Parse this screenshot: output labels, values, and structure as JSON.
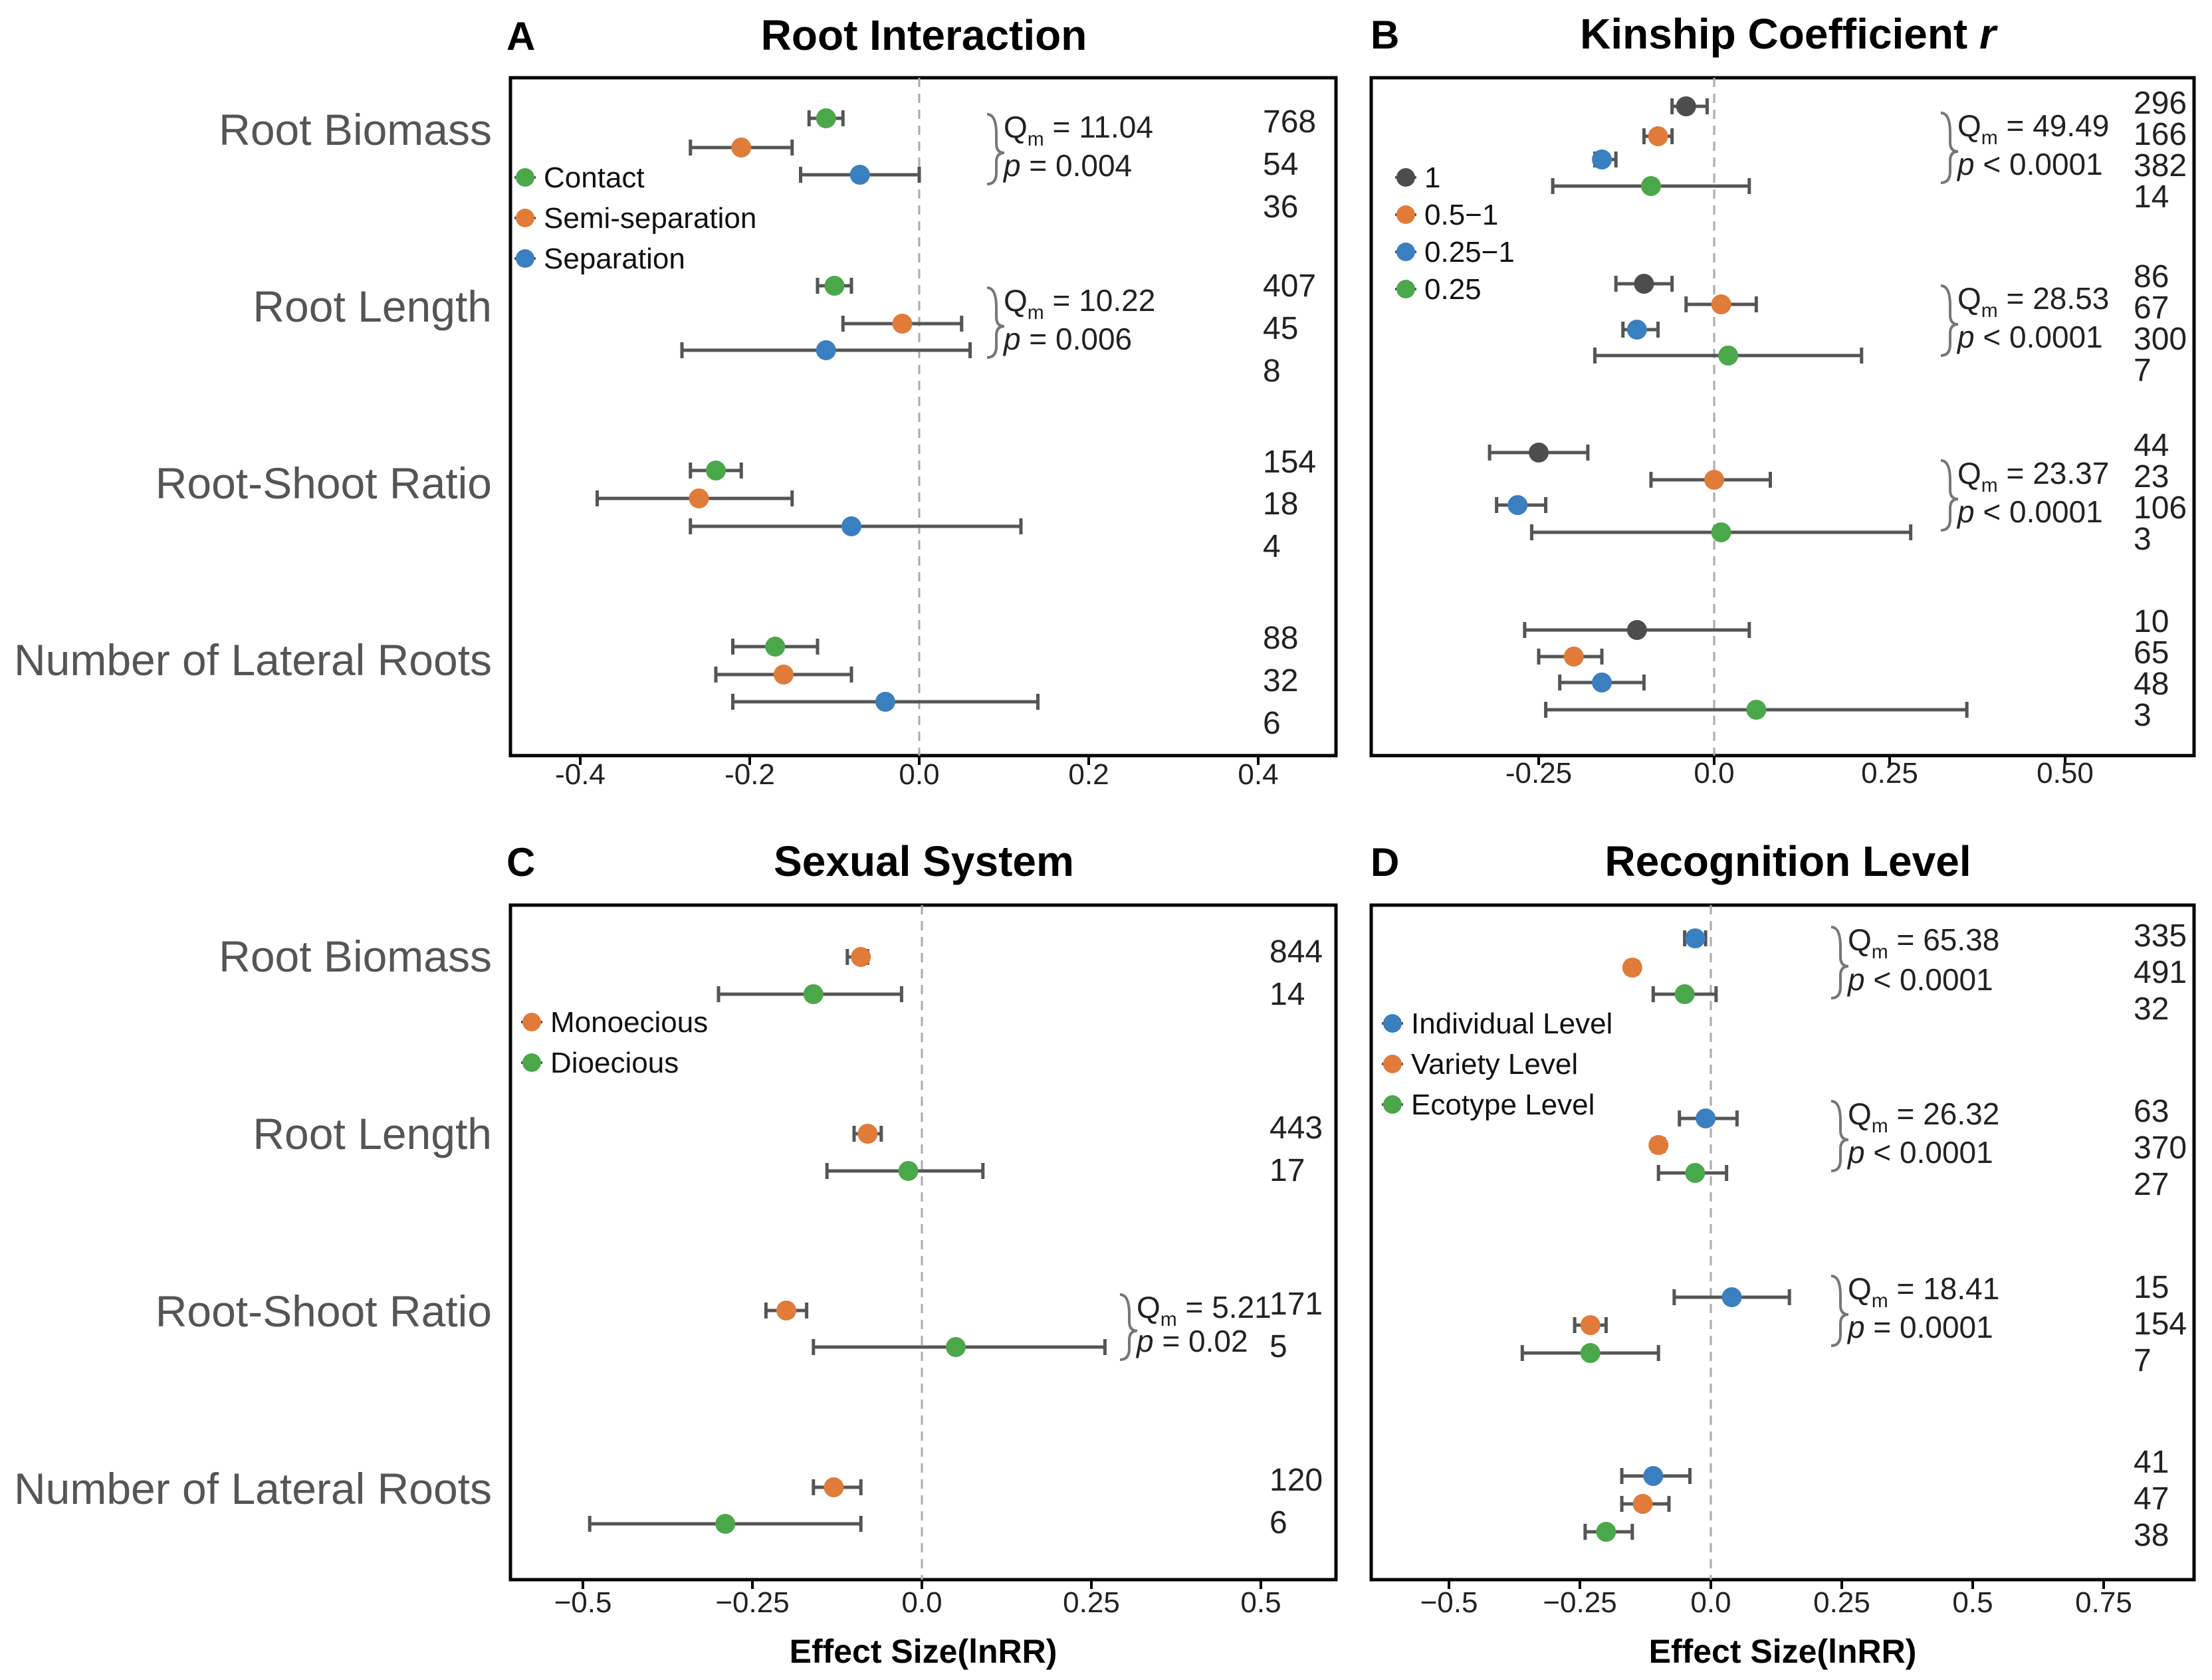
{
  "chart_data": [
    {
      "panel": "A",
      "title": "Root Interaction",
      "type": "scatter",
      "xlim": [
        -0.46,
        0.5
      ],
      "xticks": [
        "-0.4",
        "-0.2",
        "0.0",
        "0.2",
        "0.4"
      ],
      "xtick_values": [
        -0.4,
        -0.2,
        0.0,
        0.2,
        0.4
      ],
      "xlabel": "",
      "legend": [
        {
          "label": "Contact",
          "color": "#4aa84a"
        },
        {
          "label": "Semi-separation",
          "color": "#e07b39"
        },
        {
          "label": "Separation",
          "color": "#3a7fc0"
        }
      ],
      "groups": [
        {
          "category": "Root Biomass",
          "q_value": "= 11.04",
          "p_value": "= 0.004",
          "points": [
            {
              "series": 0,
              "mean": -0.11,
              "lo": -0.13,
              "hi": -0.09,
              "n": "768"
            },
            {
              "series": 1,
              "mean": -0.21,
              "lo": -0.27,
              "hi": -0.15,
              "n": "54"
            },
            {
              "series": 2,
              "mean": -0.07,
              "lo": -0.14,
              "hi": 0.0,
              "n": "36"
            }
          ]
        },
        {
          "category": "Root Length",
          "q_value": "= 10.22",
          "p_value": "= 0.006",
          "points": [
            {
              "series": 0,
              "mean": -0.1,
              "lo": -0.12,
              "hi": -0.08,
              "n": "407"
            },
            {
              "series": 1,
              "mean": -0.02,
              "lo": -0.09,
              "hi": 0.05,
              "n": "45"
            },
            {
              "series": 2,
              "mean": -0.11,
              "lo": -0.28,
              "hi": 0.06,
              "n": "8"
            }
          ]
        },
        {
          "category": "Root-Shoot Ratio",
          "q_value": "",
          "p_value": "",
          "points": [
            {
              "series": 0,
              "mean": -0.24,
              "lo": -0.27,
              "hi": -0.21,
              "n": "154"
            },
            {
              "series": 1,
              "mean": -0.26,
              "lo": -0.38,
              "hi": -0.15,
              "n": "18"
            },
            {
              "series": 2,
              "mean": -0.08,
              "lo": -0.27,
              "hi": 0.12,
              "n": "4"
            }
          ]
        },
        {
          "category": "Number of Lateral Roots",
          "q_value": "",
          "p_value": "",
          "points": [
            {
              "series": 0,
              "mean": -0.17,
              "lo": -0.22,
              "hi": -0.12,
              "n": "88"
            },
            {
              "series": 1,
              "mean": -0.16,
              "lo": -0.24,
              "hi": -0.08,
              "n": "32"
            },
            {
              "series": 2,
              "mean": -0.04,
              "lo": -0.22,
              "hi": 0.14,
              "n": "6"
            }
          ]
        }
      ]
    },
    {
      "panel": "B",
      "title": "Kinship Coefficient ",
      "title_italic": "r",
      "type": "scatter",
      "xlim": [
        -0.47,
        0.65
      ],
      "xticks": [
        "-0.25",
        "0.0",
        "0.25",
        "0.50"
      ],
      "xtick_values": [
        -0.25,
        0.0,
        0.25,
        0.5
      ],
      "xlabel": "",
      "legend": [
        {
          "label": "1",
          "color": "#4d4d4d"
        },
        {
          "label": "0.5−1",
          "color": "#e07b39"
        },
        {
          "label": "0.25−1",
          "color": "#3a7fc0"
        },
        {
          "label": "0.25",
          "color": "#4aa84a"
        }
      ],
      "groups": [
        {
          "category": "",
          "q_value": "= 49.49",
          "p_value": "< 0.0001",
          "points": [
            {
              "series": 0,
              "mean": -0.04,
              "lo": -0.06,
              "hi": -0.01,
              "n": "296"
            },
            {
              "series": 1,
              "mean": -0.08,
              "lo": -0.1,
              "hi": -0.06,
              "n": "166"
            },
            {
              "series": 2,
              "mean": -0.16,
              "lo": -0.17,
              "hi": -0.14,
              "n": "382"
            },
            {
              "series": 3,
              "mean": -0.09,
              "lo": -0.23,
              "hi": 0.05,
              "n": "14"
            }
          ]
        },
        {
          "category": "",
          "q_value": "= 28.53",
          "p_value": "< 0.0001",
          "points": [
            {
              "series": 0,
              "mean": -0.1,
              "lo": -0.14,
              "hi": -0.06,
              "n": "86"
            },
            {
              "series": 1,
              "mean": 0.01,
              "lo": -0.04,
              "hi": 0.06,
              "n": "67"
            },
            {
              "series": 2,
              "mean": -0.11,
              "lo": -0.13,
              "hi": -0.08,
              "n": "300"
            },
            {
              "series": 3,
              "mean": 0.02,
              "lo": -0.17,
              "hi": 0.21,
              "n": "7"
            }
          ]
        },
        {
          "category": "",
          "q_value": "= 23.37",
          "p_value": "< 0.0001",
          "points": [
            {
              "series": 0,
              "mean": -0.25,
              "lo": -0.32,
              "hi": -0.18,
              "n": "44"
            },
            {
              "series": 1,
              "mean": 0.0,
              "lo": -0.09,
              "hi": 0.08,
              "n": "23"
            },
            {
              "series": 2,
              "mean": -0.28,
              "lo": -0.31,
              "hi": -0.24,
              "n": "106"
            },
            {
              "series": 3,
              "mean": 0.01,
              "lo": -0.26,
              "hi": 0.28,
              "n": "3"
            }
          ]
        },
        {
          "category": "",
          "q_value": "",
          "p_value": "",
          "points": [
            {
              "series": 0,
              "mean": -0.11,
              "lo": -0.27,
              "hi": 0.05,
              "n": "10"
            },
            {
              "series": 1,
              "mean": -0.2,
              "lo": -0.25,
              "hi": -0.16,
              "n": "65"
            },
            {
              "series": 2,
              "mean": -0.16,
              "lo": -0.22,
              "hi": -0.1,
              "n": "48"
            },
            {
              "series": 3,
              "mean": 0.06,
              "lo": -0.24,
              "hi": 0.36,
              "n": "3"
            }
          ]
        }
      ]
    },
    {
      "panel": "C",
      "title": "Sexual System",
      "type": "scatter",
      "xlim": [
        -0.58,
        0.58
      ],
      "xticks": [
        "−0.5",
        "−0.25",
        "0.0",
        "0.25",
        "0.5"
      ],
      "xtick_values": [
        -0.5,
        -0.25,
        0.0,
        0.25,
        0.5
      ],
      "xlabel": "Effect Size(lnRR)",
      "legend": [
        {
          "label": "Monoecious",
          "color": "#e07b39"
        },
        {
          "label": "Dioecious",
          "color": "#4aa84a"
        }
      ],
      "groups": [
        {
          "category": "Root Biomass",
          "q_value": "",
          "p_value": "",
          "points": [
            {
              "series": 0,
              "mean": -0.09,
              "lo": -0.11,
              "hi": -0.08,
              "n": "844"
            },
            {
              "series": 1,
              "mean": -0.16,
              "lo": -0.3,
              "hi": -0.03,
              "n": "14"
            }
          ]
        },
        {
          "category": "Root Length",
          "q_value": "",
          "p_value": "",
          "points": [
            {
              "series": 0,
              "mean": -0.08,
              "lo": -0.1,
              "hi": -0.06,
              "n": "443"
            },
            {
              "series": 1,
              "mean": -0.02,
              "lo": -0.14,
              "hi": 0.09,
              "n": "17"
            }
          ]
        },
        {
          "category": "Root-Shoot Ratio",
          "q_value": "= 5.21",
          "p_value": "= 0.02",
          "points": [
            {
              "series": 0,
              "mean": -0.2,
              "lo": -0.23,
              "hi": -0.17,
              "n": "171"
            },
            {
              "series": 1,
              "mean": 0.05,
              "lo": -0.16,
              "hi": 0.27,
              "n": "5"
            }
          ]
        },
        {
          "category": "Number of Lateral Roots",
          "q_value": "",
          "p_value": "",
          "points": [
            {
              "series": 0,
              "mean": -0.13,
              "lo": -0.16,
              "hi": -0.09,
              "n": "120"
            },
            {
              "series": 1,
              "mean": -0.29,
              "lo": -0.49,
              "hi": -0.09,
              "n": "6"
            }
          ]
        }
      ]
    },
    {
      "panel": "D",
      "title": "Recognition Level",
      "type": "scatter",
      "xlim": [
        -0.65,
        0.95
      ],
      "xticks": [
        "−0.5",
        "−0.25",
        "0.0",
        "0.25",
        "0.5",
        "0.75"
      ],
      "xtick_values": [
        -0.5,
        -0.25,
        0.0,
        0.25,
        0.5,
        0.75
      ],
      "xlabel": "Effect Size(lnRR)",
      "legend": [
        {
          "label": "Individual Level",
          "color": "#3a7fc0"
        },
        {
          "label": "Variety Level",
          "color": "#e07b39"
        },
        {
          "label": "Ecotype Level",
          "color": "#4aa84a"
        }
      ],
      "groups": [
        {
          "category": "",
          "q_value": "= 65.38",
          "p_value": "< 0.0001",
          "points": [
            {
              "series": 0,
              "mean": -0.03,
              "lo": -0.05,
              "hi": -0.01,
              "n": "335"
            },
            {
              "series": 1,
              "mean": -0.15,
              "lo": -0.16,
              "hi": -0.14,
              "n": "491"
            },
            {
              "series": 2,
              "mean": -0.05,
              "lo": -0.11,
              "hi": 0.01,
              "n": "32"
            }
          ]
        },
        {
          "category": "",
          "q_value": "= 26.32",
          "p_value": "< 0.0001",
          "points": [
            {
              "series": 0,
              "mean": -0.01,
              "lo": -0.06,
              "hi": 0.05,
              "n": "63"
            },
            {
              "series": 1,
              "mean": -0.1,
              "lo": -0.11,
              "hi": -0.09,
              "n": "370"
            },
            {
              "series": 2,
              "mean": -0.03,
              "lo": -0.1,
              "hi": 0.03,
              "n": "27"
            }
          ]
        },
        {
          "category": "",
          "q_value": "= 18.41",
          "p_value": "= 0.0001",
          "points": [
            {
              "series": 0,
              "mean": 0.04,
              "lo": -0.07,
              "hi": 0.15,
              "n": "15"
            },
            {
              "series": 1,
              "mean": -0.23,
              "lo": -0.26,
              "hi": -0.2,
              "n": "154"
            },
            {
              "series": 2,
              "mean": -0.23,
              "lo": -0.36,
              "hi": -0.1,
              "n": "7"
            }
          ]
        },
        {
          "category": "",
          "q_value": "",
          "p_value": "",
          "points": [
            {
              "series": 0,
              "mean": -0.11,
              "lo": -0.17,
              "hi": -0.04,
              "n": "41"
            },
            {
              "series": 1,
              "mean": -0.13,
              "lo": -0.17,
              "hi": -0.08,
              "n": "47"
            },
            {
              "series": 2,
              "mean": -0.2,
              "lo": -0.24,
              "hi": -0.15,
              "n": "38"
            }
          ]
        }
      ]
    }
  ],
  "labels": {
    "q_symbol": "Q",
    "q_subscript": "m",
    "p_symbol": "p"
  }
}
